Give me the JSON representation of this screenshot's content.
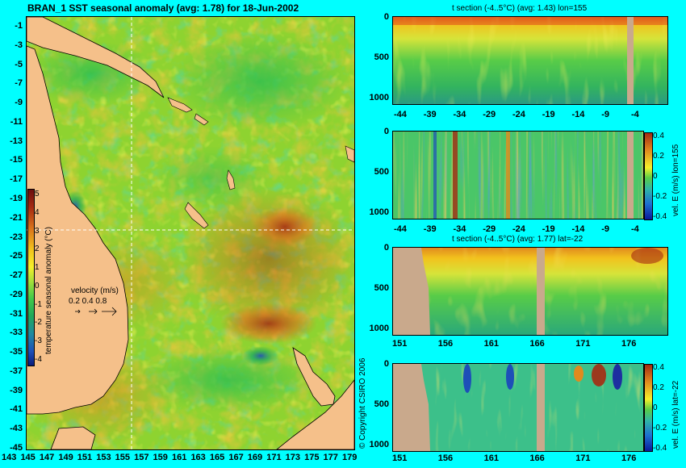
{
  "map": {
    "title": "BRAN_1 SST seasonal anomaly (avg: 1.78) for 18-Jun-2002",
    "y_ticks": [
      "-1",
      "-3",
      "-5",
      "-7",
      "-9",
      "-11",
      "-13",
      "-15",
      "-17",
      "-19",
      "-21",
      "-23",
      "-25",
      "-27",
      "-29",
      "-31",
      "-33",
      "-35",
      "-37",
      "-39",
      "-41",
      "-43",
      "-45"
    ],
    "x_ticks": [
      "143",
      "145",
      "147",
      "149",
      "151",
      "153",
      "155",
      "157",
      "159",
      "161",
      "163",
      "165",
      "167",
      "169",
      "171",
      "173",
      "175",
      "177",
      "179"
    ],
    "colorbar_label": "temperature seasonal anomaly (°C)",
    "colorbar_ticks": [
      "5",
      "4",
      "3",
      "2",
      "1",
      "0",
      "-1",
      "-2",
      "-3",
      "-4"
    ],
    "velocity_label": "velocity (m/s)",
    "velocity_values": "0.2 0.4 0.8",
    "section_lon": 155,
    "section_lat": -22
  },
  "panels": {
    "p1_title": "t section (-4..5°C) (avg: 1.43) lon=155",
    "p1_x_ticks": [
      "-44",
      "-39",
      "-34",
      "-29",
      "-24",
      "-19",
      "-14",
      "-9",
      "-4"
    ],
    "p1_y_ticks": [
      "0",
      "500",
      "1000"
    ],
    "p2_x_ticks": [
      "-44",
      "-39",
      "-34",
      "-29",
      "-24",
      "-19",
      "-14",
      "-9",
      "-4"
    ],
    "p2_y_ticks": [
      "0",
      "500",
      "1000"
    ],
    "p2_cbar_label": "vel. E (m/s) lon=155",
    "p2_cbar_ticks": [
      "0.4",
      "0.2",
      "0",
      "-0.2",
      "-0.4"
    ],
    "p3_title": "t section (-4..5°C) (avg: 1.77) lat=-22",
    "p3_x_ticks": [
      "151",
      "156",
      "161",
      "166",
      "171",
      "176"
    ],
    "p3_y_ticks": [
      "0",
      "500",
      "1000"
    ],
    "p4_x_ticks": [
      "151",
      "156",
      "161",
      "166",
      "171",
      "176"
    ],
    "p4_y_ticks": [
      "0",
      "500",
      "1000"
    ],
    "p4_cbar_label": "vel. E (m/s) lat=-22",
    "p4_cbar_ticks": [
      "0.4",
      "0.2",
      "0",
      "-0.2",
      "-0.4"
    ]
  },
  "copyright": "© Copyright CSIRO 2006",
  "colors": {
    "background": "#00ffff",
    "land": "#f5c08a",
    "warm": "#d9731b",
    "hot": "#a52a12",
    "neutral": "#8ed330",
    "cool": "#1fa85a",
    "cold": "#1d4fb8",
    "section_land": "#c9a98c"
  }
}
